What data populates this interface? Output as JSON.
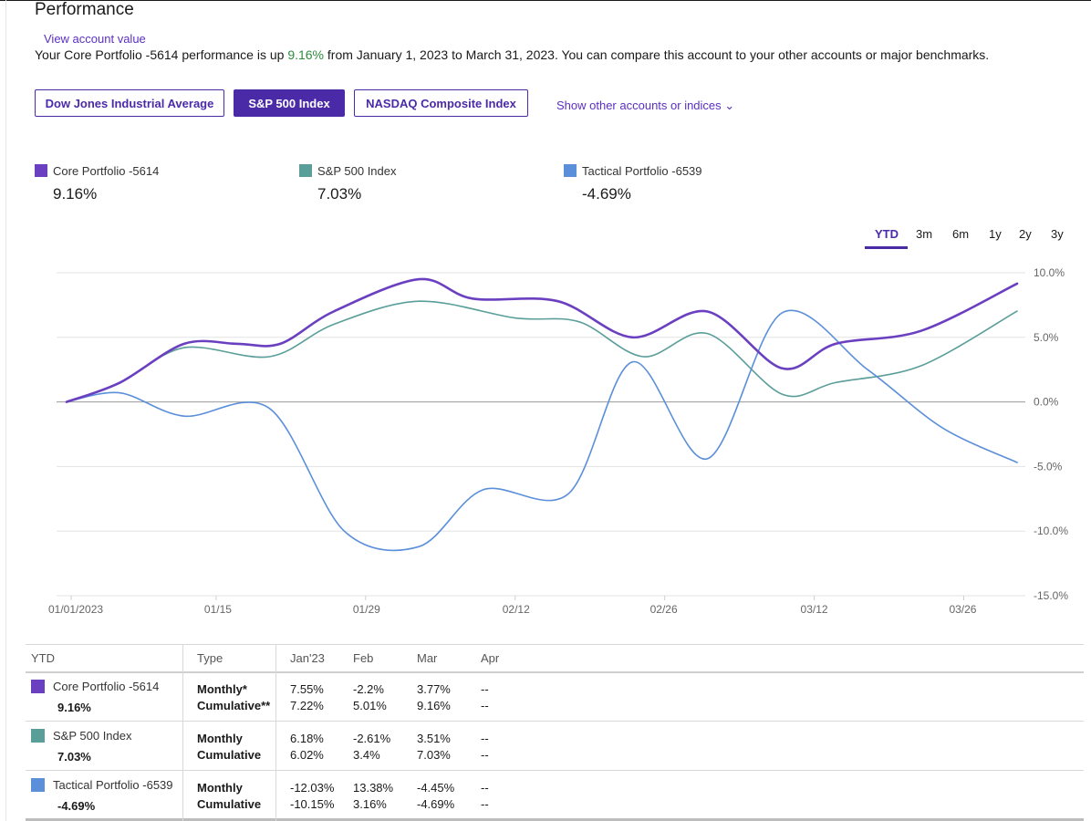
{
  "page": {
    "title": "Performance",
    "view_account_value": "View account value",
    "summary_prefix": "Your Core Portfolio -5614 performance is up ",
    "summary_value": "9.16%",
    "summary_suffix": " from January 1, 2023 to March 31, 2023. You can compare this account to your other accounts or major benchmarks."
  },
  "benchmarks": {
    "items": [
      "Dow Jones Industrial Average",
      "S&P 500 Index",
      "NASDAQ Composite Index"
    ],
    "active": "S&P 500 Index",
    "show_other": "Show other accounts or indices ⌄"
  },
  "legend": [
    {
      "name": "Core Portfolio -5614",
      "value": "9.16%",
      "color": "#6a3fc0"
    },
    {
      "name": "S&P 500 Index",
      "value": "7.03%",
      "color": "#5a9e9a"
    },
    {
      "name": "Tactical Portfolio -6539",
      "value": "-4.69%",
      "color": "#5b8fd9"
    }
  ],
  "ranges": {
    "items": [
      "YTD",
      "3m",
      "6m",
      "1y",
      "2y",
      "3y"
    ],
    "active": "YTD"
  },
  "chart_data": {
    "type": "line",
    "title": "Performance",
    "xlabel": "",
    "ylabel": "",
    "x_ticks": [
      "01/01/2023",
      "01/15",
      "01/29",
      "02/12",
      "02/26",
      "03/12",
      "03/26"
    ],
    "y_ticks": [
      "10.0%",
      "5.0%",
      "0.0%",
      "-5.0%",
      "-10.0%",
      "-15.0%"
    ],
    "ylim": [
      -15,
      10
    ],
    "x_day_range": [
      0,
      89
    ],
    "series": [
      {
        "name": "Core Portfolio -5614",
        "color": "#6a3fc0",
        "points": [
          [
            0,
            0
          ],
          [
            5,
            1.5
          ],
          [
            11,
            4.5
          ],
          [
            16,
            4.5
          ],
          [
            20,
            4.5
          ],
          [
            25,
            7
          ],
          [
            33,
            9.5
          ],
          [
            38,
            8
          ],
          [
            46,
            7.8
          ],
          [
            53,
            5
          ],
          [
            60,
            7
          ],
          [
            67,
            2.6
          ],
          [
            72,
            4.5
          ],
          [
            80,
            5.5
          ],
          [
            89,
            9.16
          ]
        ]
      },
      {
        "name": "S&P 500 Index",
        "color": "#5a9e9a",
        "points": [
          [
            0,
            0
          ],
          [
            5,
            1.5
          ],
          [
            11,
            4.2
          ],
          [
            19,
            3.5
          ],
          [
            25,
            6
          ],
          [
            33,
            7.8
          ],
          [
            42,
            6.5
          ],
          [
            48,
            6.2
          ],
          [
            54,
            3.5
          ],
          [
            60,
            5.3
          ],
          [
            67,
            0.6
          ],
          [
            72,
            1.5
          ],
          [
            80,
            2.8
          ],
          [
            89,
            7.03
          ]
        ]
      },
      {
        "name": "Tactical Portfolio -6539",
        "color": "#5b8fd9",
        "points": [
          [
            0,
            0
          ],
          [
            5,
            0.7
          ],
          [
            11,
            -1.1
          ],
          [
            19,
            -0.5
          ],
          [
            26,
            -10
          ],
          [
            33,
            -11.2
          ],
          [
            39,
            -6.8
          ],
          [
            47,
            -7.1
          ],
          [
            53,
            3.1
          ],
          [
            60,
            -4.4
          ],
          [
            67,
            6.9
          ],
          [
            75,
            2.5
          ],
          [
            82,
            -2
          ],
          [
            89,
            -4.69
          ]
        ]
      }
    ]
  },
  "table": {
    "headers": [
      "YTD",
      "Type",
      "Jan'23",
      "Feb",
      "Mar",
      "Apr"
    ],
    "rows": [
      {
        "name": "Core Portfolio -5614",
        "total": "9.16%",
        "color": "#6a3fc0",
        "types": [
          "Monthly*",
          "Cumulative**"
        ],
        "jan": [
          "7.55%",
          "7.22%"
        ],
        "feb": [
          "-2.2%",
          "5.01%"
        ],
        "mar": [
          "3.77%",
          "9.16%"
        ],
        "apr": [
          "--",
          "--"
        ]
      },
      {
        "name": "S&P 500 Index",
        "total": "7.03%",
        "color": "#5a9e9a",
        "types": [
          "Monthly",
          "Cumulative"
        ],
        "jan": [
          "6.18%",
          "6.02%"
        ],
        "feb": [
          "-2.61%",
          "3.4%"
        ],
        "mar": [
          "3.51%",
          "7.03%"
        ],
        "apr": [
          "--",
          "--"
        ]
      },
      {
        "name": "Tactical Portfolio -6539",
        "total": "-4.69%",
        "color": "#5b8fd9",
        "types": [
          "Monthly",
          "Cumulative"
        ],
        "jan": [
          "-12.03%",
          "-10.15%"
        ],
        "feb": [
          "13.38%",
          "3.16%"
        ],
        "mar": [
          "-4.45%",
          "-4.69%"
        ],
        "apr": [
          "--",
          "--"
        ]
      }
    ]
  }
}
